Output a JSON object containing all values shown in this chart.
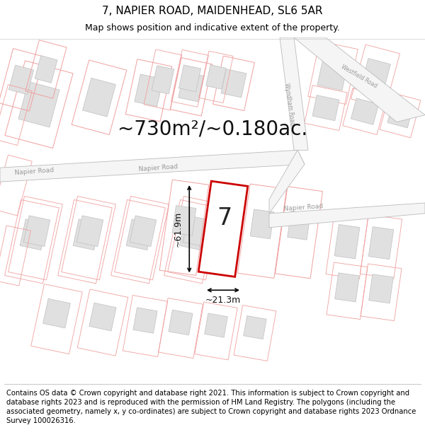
{
  "title": "7, NAPIER ROAD, MAIDENHEAD, SL6 5AR",
  "subtitle": "Map shows position and indicative extent of the property.",
  "area_text": "~730m²/~0.180ac.",
  "width_text": "~21.3m",
  "height_text": "~61.9m",
  "property_number": "7",
  "footer_text": "Contains OS data © Crown copyright and database right 2021. This information is subject to Crown copyright and database rights 2023 and is reproduced with the permission of HM Land Registry. The polygons (including the associated geometry, namely x, y co-ordinates) are subject to Crown copyright and database rights 2023 Ordnance Survey 100026316.",
  "map_bg": "#ffffff",
  "road_fill": "#f5f5f5",
  "road_edge": "#bbbbbb",
  "building_fill": "#e0e0e0",
  "building_edge": "#c0c0c0",
  "cadastral_color": "#f0a0a0",
  "highlight_fill": "#ffffff",
  "highlight_stroke": "#cc0000",
  "road_label_color": "#999999",
  "title_fontsize": 11,
  "subtitle_fontsize": 9,
  "area_fontsize": 20,
  "number_fontsize": 24,
  "footer_fontsize": 7.2,
  "dim_fontsize": 9
}
